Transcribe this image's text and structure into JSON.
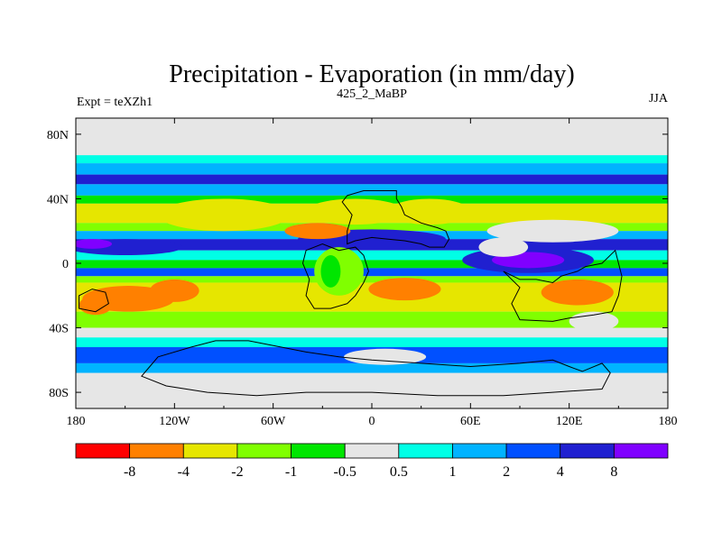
{
  "chart_data": {
    "type": "heatmap",
    "title": "Precipitation - Evaporation (in mm/day)",
    "subtitle_left": "Expt = teXZh1",
    "subtitle_center": "425_2_MaBP",
    "subtitle_right": "JJA",
    "x_range": [
      -180,
      180
    ],
    "y_range": [
      -90,
      90
    ],
    "x_ticks": [
      {
        "value": -180,
        "label": "180"
      },
      {
        "value": -120,
        "label": "120W"
      },
      {
        "value": -60,
        "label": "60W"
      },
      {
        "value": 0,
        "label": "0"
      },
      {
        "value": 60,
        "label": "60E"
      },
      {
        "value": 120,
        "label": "120E"
      },
      {
        "value": 180,
        "label": "180"
      }
    ],
    "y_ticks": [
      {
        "value": 80,
        "label": "80N"
      },
      {
        "value": 40,
        "label": "40N"
      },
      {
        "value": 0,
        "label": "0"
      },
      {
        "value": -40,
        "label": "40S"
      },
      {
        "value": -80,
        "label": "80S"
      }
    ],
    "colorbar": {
      "boundaries": [
        "-8",
        "-4",
        "-2",
        "-1",
        "-0.5",
        "0.5",
        "1",
        "2",
        "4",
        "8"
      ],
      "colors": [
        "#ff0000",
        "#ff8000",
        "#e6e600",
        "#80ff00",
        "#00e600",
        "#e6e6e6",
        "#00ffe6",
        "#00b3ff",
        "#0050ff",
        "#2020d0",
        "#8000ff"
      ]
    },
    "zonal_bands": [
      {
        "lat_top": 90,
        "lat_bottom": 67,
        "level": 5
      },
      {
        "lat_top": 67,
        "lat_bottom": 62,
        "level": 6
      },
      {
        "lat_top": 62,
        "lat_bottom": 55,
        "level": 7
      },
      {
        "lat_top": 55,
        "lat_bottom": 49,
        "level": 9
      },
      {
        "lat_top": 49,
        "lat_bottom": 42,
        "level": 7
      },
      {
        "lat_top": 42,
        "lat_bottom": 37,
        "level": 4
      },
      {
        "lat_top": 37,
        "lat_bottom": 25,
        "level": 2
      },
      {
        "lat_top": 25,
        "lat_bottom": 20,
        "level": 3
      },
      {
        "lat_top": 20,
        "lat_bottom": 15,
        "level": 7
      },
      {
        "lat_top": 15,
        "lat_bottom": 8,
        "level": 9
      },
      {
        "lat_top": 8,
        "lat_bottom": 2,
        "level": 6
      },
      {
        "lat_top": 2,
        "lat_bottom": -3,
        "level": 4
      },
      {
        "lat_top": -3,
        "lat_bottom": -8,
        "level": 8
      },
      {
        "lat_top": -8,
        "lat_bottom": -12,
        "level": 3
      },
      {
        "lat_top": -12,
        "lat_bottom": -30,
        "level": 2
      },
      {
        "lat_top": -30,
        "lat_bottom": -40,
        "level": 3
      },
      {
        "lat_top": -40,
        "lat_bottom": -46,
        "level": 5
      },
      {
        "lat_top": -46,
        "lat_bottom": -52,
        "level": 6
      },
      {
        "lat_top": -52,
        "lat_bottom": -62,
        "level": 8
      },
      {
        "lat_top": -62,
        "lat_bottom": -68,
        "level": 7
      },
      {
        "lat_top": -68,
        "lat_bottom": -90,
        "level": 5
      }
    ],
    "blobs": [
      {
        "lon": 0,
        "lat": 15,
        "rx": 45,
        "ry": 6,
        "level": 9
      },
      {
        "lon": 110,
        "lat": 20,
        "rx": 40,
        "ry": 7,
        "level": 5
      },
      {
        "lon": 95,
        "lat": 2,
        "rx": 40,
        "ry": 8,
        "level": 9
      },
      {
        "lon": 95,
        "lat": 2,
        "rx": 22,
        "ry": 5,
        "level": 10
      },
      {
        "lon": -150,
        "lat": 10,
        "rx": 35,
        "ry": 5,
        "level": 9
      },
      {
        "lon": -170,
        "lat": 12,
        "rx": 12,
        "ry": 3,
        "level": 10
      },
      {
        "lon": -33,
        "lat": 20,
        "rx": 20,
        "ry": 5,
        "level": 1
      },
      {
        "lon": -90,
        "lat": 30,
        "rx": 40,
        "ry": 10,
        "level": 2
      },
      {
        "lon": -10,
        "lat": 32,
        "rx": 30,
        "ry": 8,
        "level": 2
      },
      {
        "lon": 35,
        "lat": 32,
        "rx": 25,
        "ry": 8,
        "level": 2
      },
      {
        "lon": -148,
        "lat": -22,
        "rx": 28,
        "ry": 8,
        "level": 1
      },
      {
        "lon": -120,
        "lat": -17,
        "rx": 15,
        "ry": 7,
        "level": 1
      },
      {
        "lon": -168,
        "lat": -26,
        "rx": 10,
        "ry": 6,
        "level": 1
      },
      {
        "lon": 20,
        "lat": -16,
        "rx": 22,
        "ry": 7,
        "level": 1
      },
      {
        "lon": 125,
        "lat": -18,
        "rx": 22,
        "ry": 8,
        "level": 1
      },
      {
        "lon": 8,
        "lat": -58,
        "rx": 25,
        "ry": 5,
        "level": 5
      },
      {
        "lon": 135,
        "lat": -36,
        "rx": 15,
        "ry": 6,
        "level": 5
      },
      {
        "lon": -20,
        "lat": -5,
        "rx": 15,
        "ry": 15,
        "level": 3
      },
      {
        "lon": -25,
        "lat": -5,
        "rx": 6,
        "ry": 10,
        "level": 4
      },
      {
        "lon": 80,
        "lat": 10,
        "rx": 15,
        "ry": 6,
        "level": 5
      }
    ],
    "continent_outlines": [
      {
        "name": "north-landmass",
        "points": [
          [
            -15,
            42
          ],
          [
            -5,
            45
          ],
          [
            15,
            45
          ],
          [
            15,
            40
          ],
          [
            18,
            35
          ],
          [
            20,
            30
          ],
          [
            30,
            25
          ],
          [
            40,
            22
          ],
          [
            45,
            20
          ],
          [
            47,
            15
          ],
          [
            44,
            10
          ],
          [
            35,
            10
          ],
          [
            30,
            12
          ],
          [
            20,
            14
          ],
          [
            10,
            15
          ],
          [
            0,
            16
          ],
          [
            -10,
            14
          ],
          [
            -15,
            12
          ],
          [
            -15,
            20
          ],
          [
            -12,
            30
          ],
          [
            -18,
            38
          ]
        ]
      },
      {
        "name": "central-landmass",
        "points": [
          [
            -40,
            8
          ],
          [
            -30,
            12
          ],
          [
            -25,
            10
          ],
          [
            -20,
            8
          ],
          [
            -10,
            10
          ],
          [
            -5,
            5
          ],
          [
            -2,
            -5
          ],
          [
            -5,
            -12
          ],
          [
            -10,
            -20
          ],
          [
            -15,
            -25
          ],
          [
            -25,
            -28
          ],
          [
            -35,
            -28
          ],
          [
            -40,
            -20
          ],
          [
            -38,
            -10
          ],
          [
            -42,
            0
          ]
        ]
      },
      {
        "name": "east-landmass",
        "points": [
          [
            80,
            -5
          ],
          [
            90,
            -10
          ],
          [
            100,
            -10
          ],
          [
            110,
            -12
          ],
          [
            115,
            -8
          ],
          [
            125,
            -5
          ],
          [
            130,
            -2
          ],
          [
            140,
            0
          ],
          [
            148,
            8
          ],
          [
            152,
            -8
          ],
          [
            150,
            -20
          ],
          [
            146,
            -30
          ],
          [
            135,
            -32
          ],
          [
            120,
            -34
          ],
          [
            110,
            -36
          ],
          [
            90,
            -35
          ],
          [
            85,
            -25
          ],
          [
            90,
            -15
          ]
        ]
      },
      {
        "name": "far-west-landmass",
        "points": [
          [
            -178,
            -20
          ],
          [
            -170,
            -16
          ],
          [
            -162,
            -18
          ],
          [
            -160,
            -25
          ],
          [
            -168,
            -30
          ],
          [
            -178,
            -28
          ]
        ]
      },
      {
        "name": "south-landmass",
        "points": [
          [
            -130,
            -58
          ],
          [
            -110,
            -52
          ],
          [
            -95,
            -48
          ],
          [
            -75,
            -48
          ],
          [
            -55,
            -52
          ],
          [
            -40,
            -55
          ],
          [
            -20,
            -58
          ],
          [
            0,
            -60
          ],
          [
            30,
            -62
          ],
          [
            60,
            -64
          ],
          [
            90,
            -62
          ],
          [
            110,
            -60
          ],
          [
            120,
            -64
          ],
          [
            128,
            -67
          ],
          [
            140,
            -62
          ],
          [
            145,
            -68
          ],
          [
            140,
            -78
          ],
          [
            110,
            -80
          ],
          [
            80,
            -82
          ],
          [
            40,
            -82
          ],
          [
            0,
            -80
          ],
          [
            -40,
            -80
          ],
          [
            -70,
            -82
          ],
          [
            -100,
            -80
          ],
          [
            -125,
            -76
          ],
          [
            -140,
            -70
          ],
          [
            -135,
            -64
          ]
        ]
      }
    ]
  }
}
